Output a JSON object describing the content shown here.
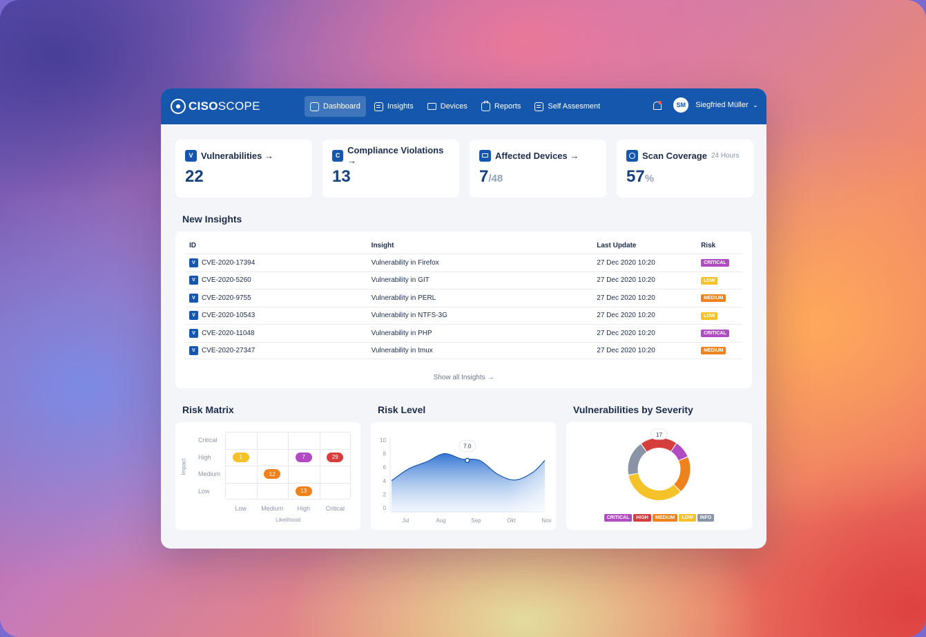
{
  "app": {
    "logo_bold": "CISO",
    "logo_light": "SCOPE",
    "nav": [
      {
        "label": "Dashboard",
        "icon": "chart-icon"
      },
      {
        "label": "Insights",
        "icon": "list-icon"
      },
      {
        "label": "Devices",
        "icon": "laptop-icon"
      },
      {
        "label": "Reports",
        "icon": "clipboard-icon"
      },
      {
        "label": "Self Assesment",
        "icon": "checklist-icon"
      }
    ],
    "user": {
      "initials": "SM",
      "name": "Siegfried Müller"
    }
  },
  "stats": [
    {
      "badge": "V",
      "title": "Vulnerabilities →",
      "value": "22"
    },
    {
      "badge": "C",
      "title": "Compliance Violations →",
      "value": "13"
    },
    {
      "badge": "",
      "title": "Affected Devices →",
      "value": "7",
      "total": "/48"
    },
    {
      "badge": "",
      "title": "Scan Coverage",
      "sub": "24 Hours",
      "value": "57",
      "unit": "%"
    }
  ],
  "insights": {
    "title": "New Insights",
    "headers": [
      "ID",
      "Insight",
      "Last Update",
      "Risk"
    ],
    "rows": [
      {
        "id": "CVE-2020-17394",
        "insight": "Vulnerability in Firefox",
        "updated": "27 Dec 2020 10:20",
        "risk": "CRITICAL"
      },
      {
        "id": "CVE-2020-5260",
        "insight": "Vulnerability in GIT",
        "updated": "27 Dec 2020 10:20",
        "risk": "LOW"
      },
      {
        "id": "CVE-2020-9755",
        "insight": "Vulnerability in PERL",
        "updated": "27 Dec 2020 10:20",
        "risk": "MEDIUM"
      },
      {
        "id": "CVE-2020-10543",
        "insight": "Vulnerability in NTFS-3G",
        "updated": "27 Dec 2020 10:20",
        "risk": "LOW"
      },
      {
        "id": "CVE-2020-11048",
        "insight": "Vulnerability in PHP",
        "updated": "27 Dec 2020 10:20",
        "risk": "CRITICAL"
      },
      {
        "id": "CVE-2020-27347",
        "insight": "Vulnerability in tmux",
        "updated": "27 Dec 2020 10:20",
        "risk": "MEDIUM"
      }
    ],
    "show_all": "Show all Insights →"
  },
  "risk_colors": {
    "CRITICAL": "#b24ac4",
    "HIGH": "#d63d3d",
    "MEDIUM": "#f0821e",
    "LOW": "#f6c22a",
    "INFO": "#8a94a6"
  },
  "risk_matrix": {
    "title": "Risk Matrix",
    "y_title": "Impact",
    "x_title": "Likelihood",
    "rows": [
      "Critical",
      "High",
      "Medium",
      "Low"
    ],
    "cols": [
      "Low",
      "Medium",
      "High",
      "Critical"
    ],
    "cells": [
      {
        "row": "High",
        "col": "Low",
        "value": "1",
        "color": "#f6c22a"
      },
      {
        "row": "High",
        "col": "High",
        "value": "7",
        "color": "#b24ac4"
      },
      {
        "row": "High",
        "col": "Critical",
        "value": "29",
        "color": "#d63d3d"
      },
      {
        "row": "Medium",
        "col": "Medium",
        "value": "12",
        "color": "#f0821e"
      },
      {
        "row": "Low",
        "col": "High",
        "value": "13",
        "color": "#f0821e"
      }
    ]
  },
  "risk_level": {
    "title": "Risk Level",
    "tooltip": "7.0",
    "y_ticks": [
      "10",
      "8",
      "6",
      "4",
      "2",
      "0"
    ],
    "x_ticks": [
      "Jul",
      "Aug",
      "Sep",
      "Okt",
      "Nov"
    ]
  },
  "severity": {
    "title": "Vulnerabilities by Severity",
    "tooltip": "17",
    "legend": [
      "CRITICAL",
      "HIGH",
      "MEDIUM",
      "LOW",
      "INFO"
    ]
  },
  "chart_data": [
    {
      "type": "area",
      "title": "Risk Level",
      "categories": [
        "Jul",
        "Aug",
        "Sep",
        "Okt",
        "Nov"
      ],
      "x": [
        0,
        0.5,
        1,
        1.5,
        2,
        2.5,
        3,
        3.5,
        4,
        4.35
      ],
      "y": [
        4.0,
        5.8,
        6.8,
        8.0,
        7.2,
        7.0,
        5.0,
        4.1,
        5.2,
        7.0
      ],
      "ylim": [
        0,
        10
      ],
      "highlight": {
        "x": 2.15,
        "y": 7.0
      }
    },
    {
      "type": "pie",
      "title": "Vulnerabilities by Severity",
      "labels": [
        "CRITICAL",
        "HIGH",
        "MEDIUM",
        "LOW",
        "INFO"
      ],
      "values": [
        8,
        17,
        17,
        30,
        16
      ]
    }
  ]
}
